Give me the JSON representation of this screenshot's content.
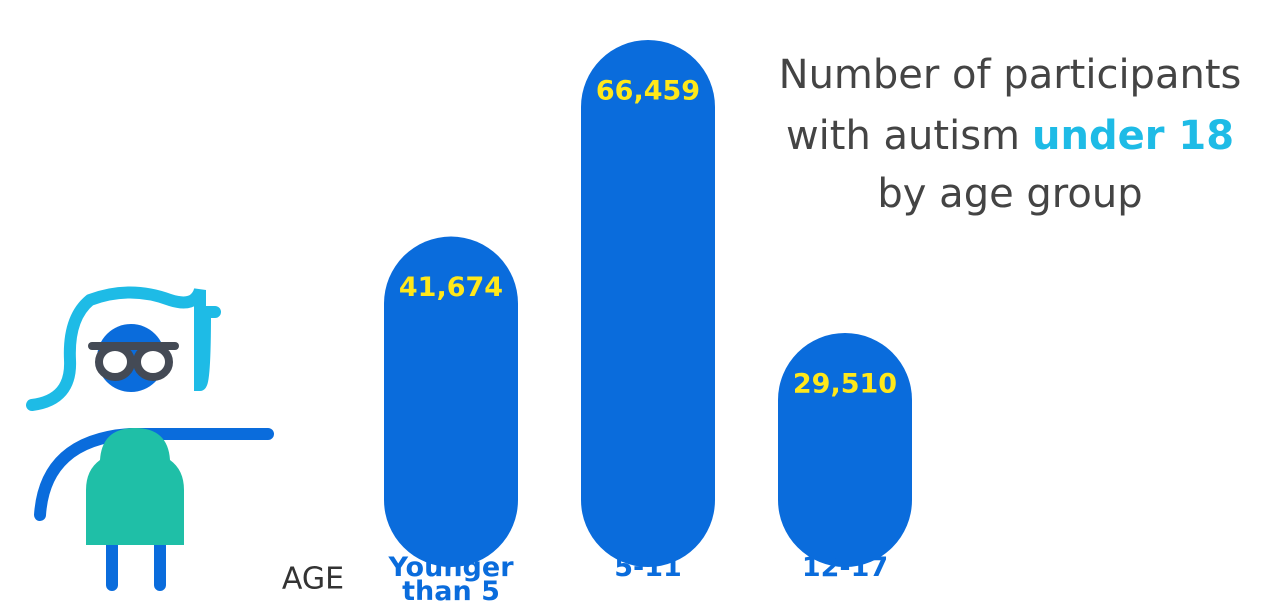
{
  "chart_data": {
    "type": "bar",
    "title": [
      "Number of participants",
      "with autism",
      "under 18",
      "by age group"
    ],
    "xlabel": "AGE",
    "categories": [
      "Younger than 5",
      "5-11",
      "12-17"
    ],
    "values": [
      41674,
      66459,
      29510
    ],
    "value_labels": [
      "41,674",
      "66,459",
      "29,510"
    ],
    "color": "#0a6cdc"
  }
}
